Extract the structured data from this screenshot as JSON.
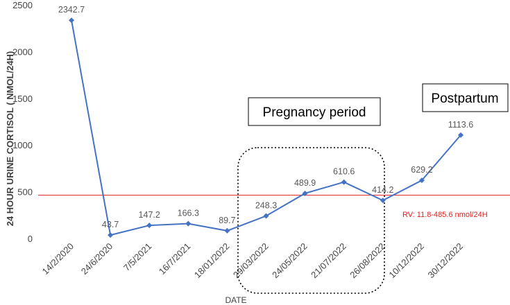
{
  "chart_data": {
    "type": "line",
    "categories": [
      "14/2/2020",
      "24/6/2020",
      "7/5/2021",
      "16/7/2021",
      "18/01/2022",
      "29/03/2022",
      "24/05/2022",
      "21/07/2022",
      "26/08/2022",
      "10/12/2022",
      "30/12/2022"
    ],
    "values": [
      2342.7,
      43.7,
      147.2,
      166.3,
      89.7,
      248.3,
      489.9,
      610.6,
      414.2,
      629.2,
      1113.6
    ],
    "data_labels": [
      "2342.7",
      "43.7",
      "147.2",
      "166.3",
      "89.7",
      "248.3",
      "489.9",
      "610.6",
      "414.2",
      "629.2",
      "1113.6"
    ],
    "ylabel": "24 HOUR URINE  CORTISOL ( NMOL/24H)",
    "xlabel": "DATE",
    "ylim": [
      0,
      2500
    ],
    "yticks": [
      "0",
      "500",
      "1000",
      "1500",
      "2000",
      "2500"
    ],
    "grid": false,
    "reference_line": {
      "value": 470,
      "label": "RV: 11.8-485.6 nmol/24H",
      "color": "#e02020"
    },
    "annotations": {
      "pregnancy": "Pregnancy period",
      "postpartum": "Postpartum"
    },
    "colors": {
      "series": "#4472c4",
      "reference": "#e02020"
    }
  }
}
